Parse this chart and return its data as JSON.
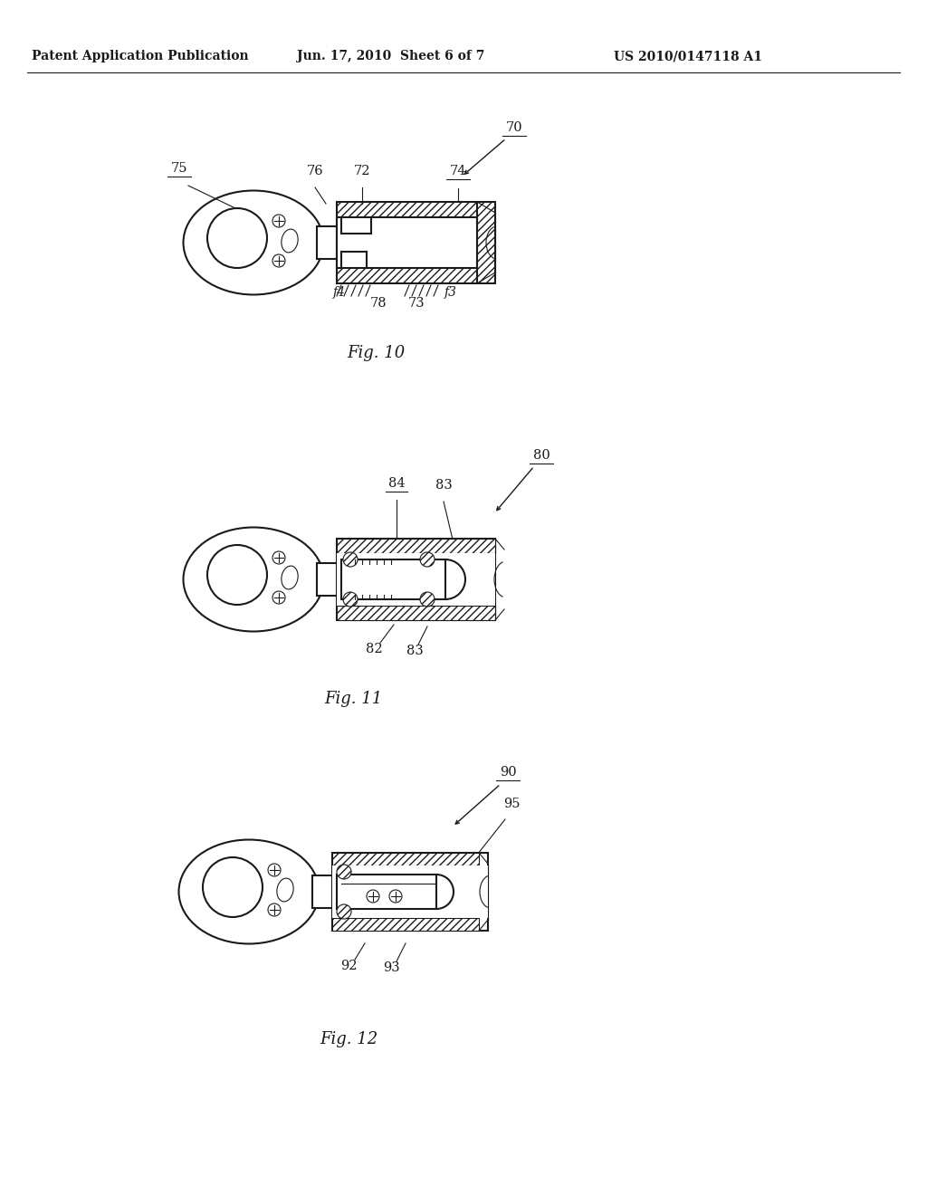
{
  "background_color": "#ffffff",
  "header_left": "Patent Application Publication",
  "header_center": "Jun. 17, 2010  Sheet 6 of 7",
  "header_right": "US 2010/0147118 A1",
  "fig10_caption": "Fig. 10",
  "fig11_caption": "Fig. 11",
  "fig12_caption": "Fig. 12",
  "line_color": "#1a1a1a",
  "label_color": "#000000",
  "header_fontsize": 10,
  "caption_fontsize": 13,
  "label_fontsize": 10.5
}
